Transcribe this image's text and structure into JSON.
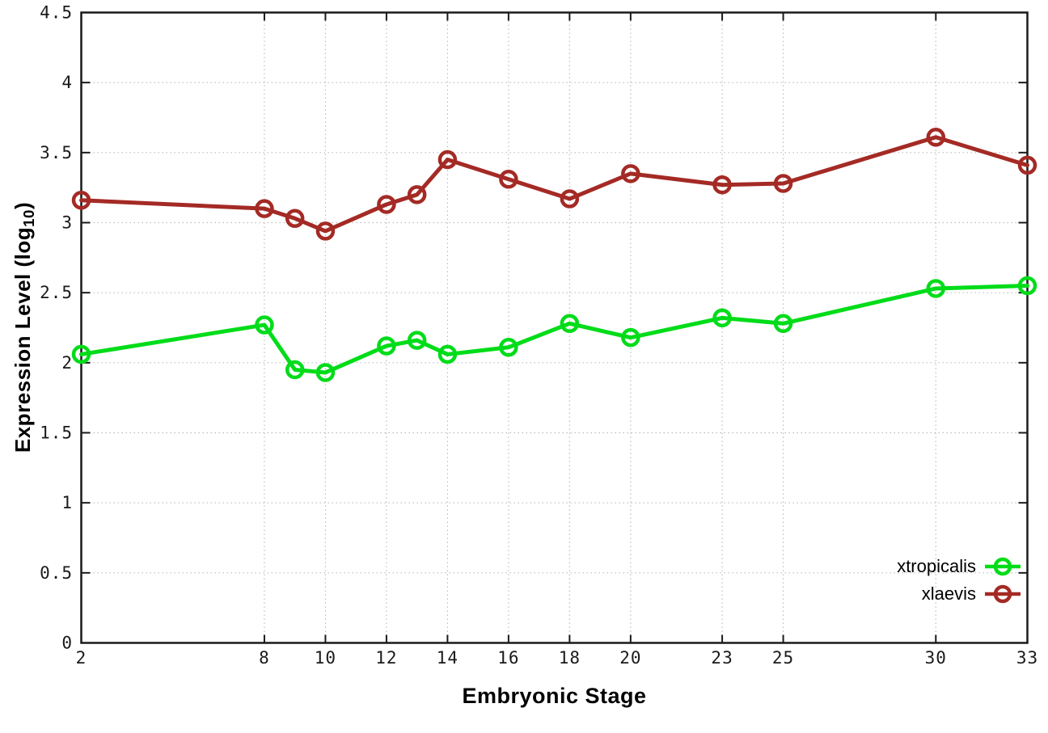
{
  "chart_data": {
    "type": "line",
    "title": "",
    "xlabel": "Embryonic Stage",
    "ylabel": "Expression Level (log10)",
    "ylabel_parts": {
      "pre": "Expression Level (log",
      "sub": "10",
      "post": ")"
    },
    "x": [
      2,
      8,
      9,
      10,
      12,
      13,
      14,
      16,
      18,
      20,
      23,
      25,
      30,
      33
    ],
    "series": [
      {
        "name": "xtropicalis",
        "color": "#00dc19",
        "values": [
          2.06,
          2.27,
          1.95,
          1.93,
          2.12,
          2.16,
          2.06,
          2.11,
          2.28,
          2.18,
          2.32,
          2.28,
          2.53,
          2.55
        ]
      },
      {
        "name": "xlaevis",
        "color": "#a42a25",
        "values": [
          3.16,
          3.1,
          3.03,
          2.94,
          3.13,
          3.2,
          3.45,
          3.31,
          3.17,
          3.35,
          3.27,
          3.28,
          3.61,
          3.41
        ]
      }
    ],
    "xticks": [
      2,
      8,
      10,
      12,
      14,
      16,
      18,
      20,
      23,
      25,
      30,
      33
    ],
    "yticks": [
      0,
      0.5,
      1,
      1.5,
      2,
      2.5,
      3,
      3.5,
      4,
      4.5
    ],
    "xlim": [
      2,
      33
    ],
    "ylim": [
      0,
      4.5
    ],
    "grid": true,
    "legend_position": "inside-bottom-right",
    "axis_color": "#1a1a1a",
    "grid_color": "#bdbdbd",
    "tick_label_color": "#1a1a1a"
  }
}
